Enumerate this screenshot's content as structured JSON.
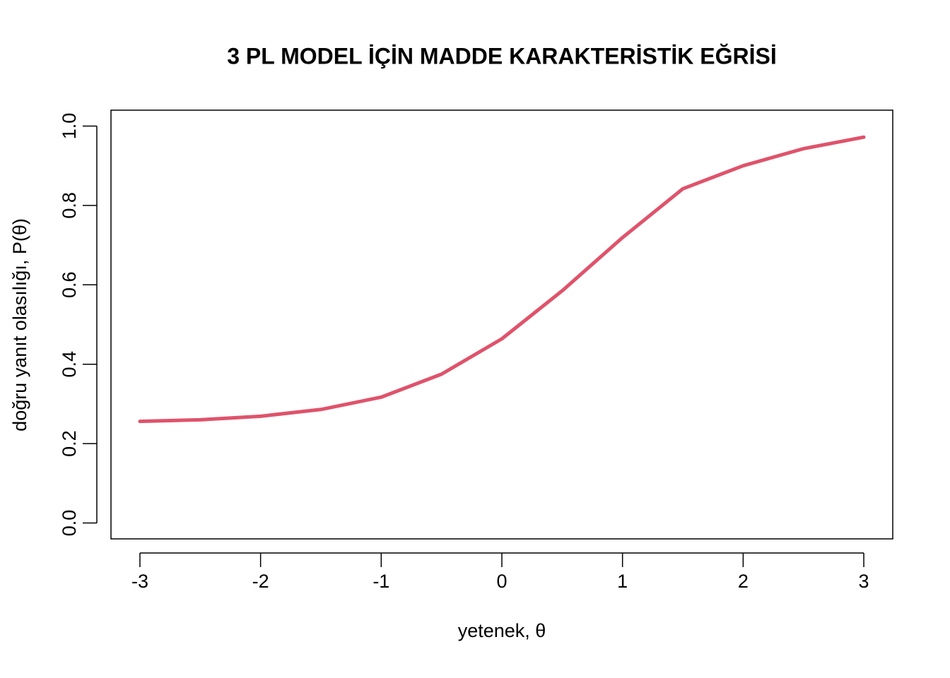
{
  "chart_data": {
    "type": "line",
    "title": "3 PL MODEL İÇİN MADDE KARAKTERİSTİK EĞRİSİ",
    "x_label": "yetenek, θ",
    "y_label": "doğru yanıt olasılığı, P(θ)",
    "x": [
      -3,
      -2.5,
      -2,
      -1.5,
      -1,
      -0.5,
      0,
      0.5,
      1,
      1.5,
      2,
      2.5,
      3
    ],
    "values": [
      0.256,
      0.26,
      0.269,
      0.286,
      0.317,
      0.375,
      0.464,
      0.585,
      0.719,
      0.842,
      0.9,
      0.943,
      0.972
    ],
    "color": "#DF536B",
    "xlim": [
      -3.24,
      3.24
    ],
    "ylim": [
      -0.04,
      1.04
    ],
    "xticks": [
      -3,
      -2,
      -1,
      0,
      1,
      2,
      3
    ],
    "yticks": [
      {
        "value": 0,
        "label": "0.0"
      },
      0.2,
      0.4,
      0.6,
      0.8,
      {
        "value": 1,
        "label": "1.0"
      }
    ],
    "grid": false
  }
}
